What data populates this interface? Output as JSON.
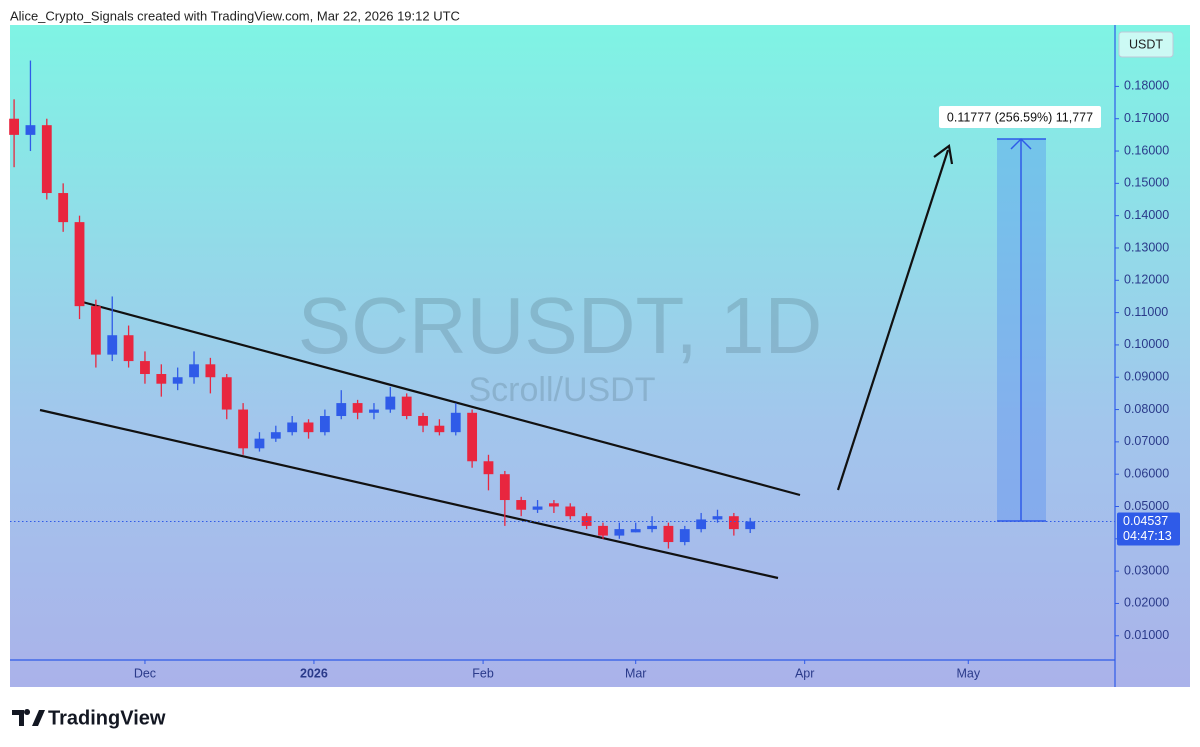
{
  "header": "Alice_Crypto_Signals created with TradingView.com, Mar 22, 2026 19:12 UTC",
  "brand": "TradingView",
  "chart_data": {
    "type": "candlestick",
    "title": "SCRUSDT, 1D",
    "subtitle": "Scroll/USDT",
    "currency": "USDT",
    "up_color": "#2f5be8",
    "down_color": "#e8263f",
    "open": [
      0.17,
      0.165,
      0.168,
      0.147,
      0.138,
      0.112,
      0.097,
      0.103,
      0.095,
      0.091,
      0.088,
      0.09,
      0.094,
      0.09,
      0.08,
      0.068,
      0.071,
      0.073,
      0.076,
      0.073,
      0.078,
      0.082,
      0.079,
      0.08,
      0.084,
      0.078,
      0.075,
      0.073,
      0.079,
      0.064,
      0.06,
      0.052,
      0.049,
      0.051,
      0.05,
      0.047,
      0.044,
      0.041,
      0.042,
      0.043,
      0.044,
      0.039,
      0.043,
      0.046,
      0.047,
      0.043
    ],
    "high": [
      0.176,
      0.188,
      0.17,
      0.15,
      0.14,
      0.114,
      0.115,
      0.106,
      0.098,
      0.094,
      0.093,
      0.098,
      0.096,
      0.091,
      0.082,
      0.073,
      0.075,
      0.078,
      0.077,
      0.08,
      0.086,
      0.083,
      0.082,
      0.087,
      0.085,
      0.079,
      0.077,
      0.082,
      0.08,
      0.066,
      0.061,
      0.053,
      0.052,
      0.052,
      0.051,
      0.048,
      0.045,
      0.045,
      0.045,
      0.047,
      0.045,
      0.044,
      0.048,
      0.049,
      0.048,
      0.0465
    ],
    "low": [
      0.155,
      0.16,
      0.145,
      0.135,
      0.108,
      0.093,
      0.095,
      0.093,
      0.088,
      0.084,
      0.086,
      0.088,
      0.085,
      0.077,
      0.066,
      0.067,
      0.07,
      0.072,
      0.071,
      0.072,
      0.077,
      0.077,
      0.077,
      0.079,
      0.077,
      0.073,
      0.072,
      0.072,
      0.062,
      0.055,
      0.044,
      0.047,
      0.048,
      0.048,
      0.046,
      0.043,
      0.04,
      0.04,
      0.042,
      0.042,
      0.037,
      0.038,
      0.042,
      0.045,
      0.041,
      0.0418
    ],
    "close": [
      0.165,
      0.168,
      0.147,
      0.138,
      0.112,
      0.097,
      0.103,
      0.095,
      0.091,
      0.088,
      0.09,
      0.094,
      0.09,
      0.08,
      0.068,
      0.071,
      0.073,
      0.076,
      0.073,
      0.078,
      0.082,
      0.079,
      0.08,
      0.084,
      0.078,
      0.075,
      0.073,
      0.079,
      0.064,
      0.06,
      0.052,
      0.049,
      0.05,
      0.05,
      0.047,
      0.044,
      0.041,
      0.043,
      0.043,
      0.044,
      0.039,
      0.043,
      0.046,
      0.047,
      0.043,
      0.04537
    ],
    "xlim": [
      -0.25,
      67.3
    ],
    "xticks": [
      {
        "value": 8,
        "label": "Dec"
      },
      {
        "value": 18.33,
        "label": "2026"
      },
      {
        "value": 28.67,
        "label": "Feb"
      },
      {
        "value": 38,
        "label": "Mar"
      },
      {
        "value": 48.33,
        "label": "Apr"
      },
      {
        "value": 58.33,
        "label": "May"
      }
    ],
    "ylim": [
      0.0025,
      0.199
    ],
    "yticks": [
      {
        "value": 0.01,
        "label": "0.01000"
      },
      {
        "value": 0.02,
        "label": "0.02000"
      },
      {
        "value": 0.03,
        "label": "0.03000"
      },
      {
        "value": 0.04,
        "label": "0.04000"
      },
      {
        "value": 0.05,
        "label": "0.05000"
      },
      {
        "value": 0.06,
        "label": "0.06000"
      },
      {
        "value": 0.07,
        "label": "0.07000"
      },
      {
        "value": 0.08,
        "label": "0.08000"
      },
      {
        "value": 0.09,
        "label": "0.09000"
      },
      {
        "value": 0.1,
        "label": "0.10000"
      },
      {
        "value": 0.11,
        "label": "0.11000"
      },
      {
        "value": 0.12,
        "label": "0.12000"
      },
      {
        "value": 0.13,
        "label": "0.13000"
      },
      {
        "value": 0.14,
        "label": "0.14000"
      },
      {
        "value": 0.15,
        "label": "0.15000"
      },
      {
        "value": 0.16,
        "label": "0.16000"
      },
      {
        "value": 0.17,
        "label": "0.17000"
      },
      {
        "value": 0.18,
        "label": "0.18000"
      }
    ],
    "last_price": 0.04537,
    "countdown": "04:47:13",
    "measure_label": "0.11777 (256.59%) 11,777"
  }
}
